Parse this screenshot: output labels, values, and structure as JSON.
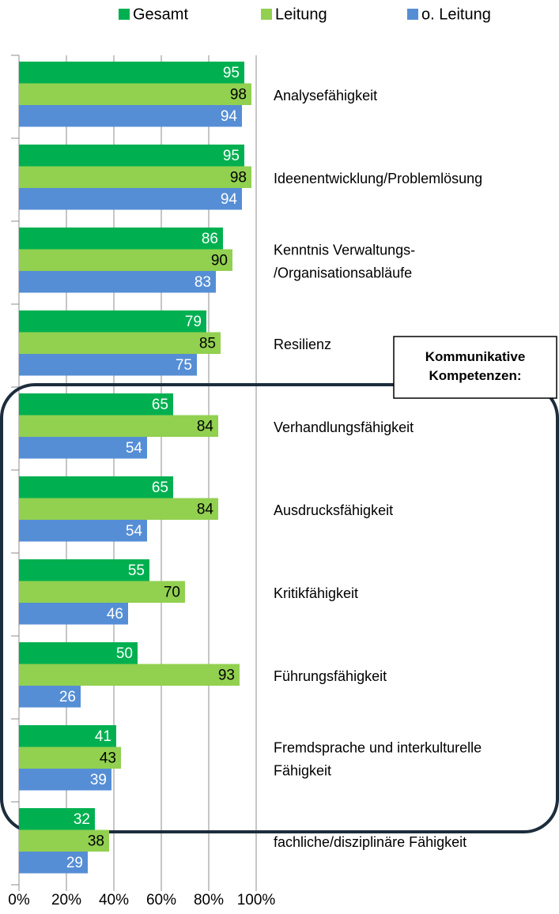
{
  "chart_data": {
    "type": "bar",
    "orientation": "horizontal",
    "categories": [
      "Analysefähigkeit",
      "Ideenentwicklung/Problemlösung",
      "Kenntnis Verwaltungs-\n/Organisationsabläufe",
      "Resilienz",
      "Verhandlungsfähigkeit",
      "Ausdrucksfähigkeit",
      "Kritikfähigkeit",
      "Führungsfähigkeit",
      "Fremdsprache und interkulturelle\nFähigkeit",
      "fachliche/disziplinäre Fähigkeit"
    ],
    "series": [
      {
        "name": "Gesamt",
        "color": "#00b050",
        "label_color": "#ffffff",
        "values": [
          95,
          95,
          86,
          79,
          65,
          65,
          55,
          50,
          41,
          32
        ]
      },
      {
        "name": "Leitung",
        "color": "#92d050",
        "label_color": "#000000",
        "values": [
          98,
          98,
          90,
          85,
          84,
          84,
          70,
          93,
          43,
          38
        ]
      },
      {
        "name": "o. Leitung",
        "color": "#558ed5",
        "label_color": "#ffffff",
        "values": [
          94,
          94,
          83,
          75,
          54,
          54,
          46,
          26,
          39,
          29
        ]
      }
    ],
    "xlim": [
      0,
      100
    ],
    "xticks": [
      {
        "value": 0,
        "label": "0%"
      },
      {
        "value": 20,
        "label": "20%"
      },
      {
        "value": 40,
        "label": "40%"
      },
      {
        "value": 60,
        "label": "60%"
      },
      {
        "value": 80,
        "label": "80%"
      },
      {
        "value": 100,
        "label": "100%"
      }
    ],
    "grid": true,
    "legend": "top",
    "annotation": "Kommunikative\nKompetenzen:"
  }
}
